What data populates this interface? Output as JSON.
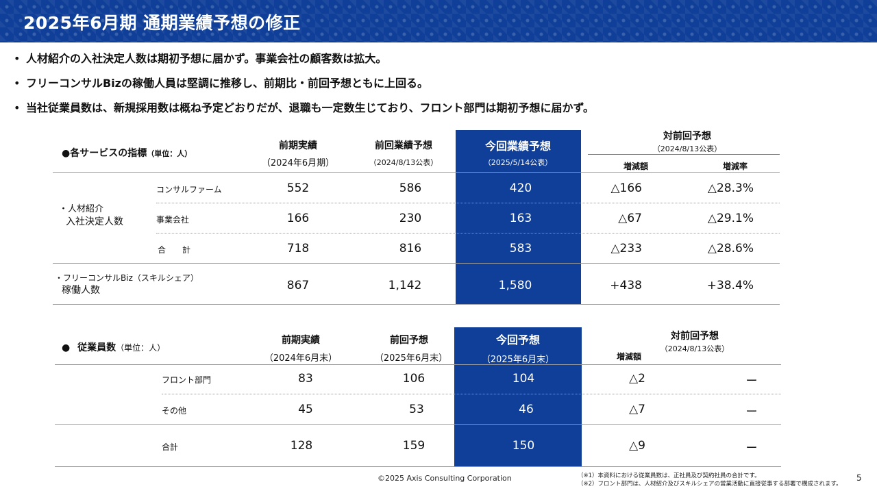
{
  "header": {
    "title": "2025年6月期 通期業績予想の修正"
  },
  "bullets": [
    "人材紹介の入社決定人数は期初予想に届かず。事業会社の顧客数は拡大。",
    "フリーコンサルBizの稼働人員は堅調に推移し、前期比・前回予想ともに上回る。",
    "当社従業員数は、新規採用数は概ね予定どおりだが、退職も一定数生じており、フロント部門は期初予想に届かず。"
  ],
  "table1": {
    "title": "●各サービスの指標",
    "unit": "（単位：人）",
    "col_prev_actual": "前期実績",
    "col_prev_actual_sub": "（2024年6月期）",
    "col_prev_forecast": "前回業績予想",
    "col_prev_forecast_sub": "（2024/8/13公表）",
    "col_current": "今回業績予想",
    "col_current_sub": "（2025/5/14公表）",
    "col_vs": "対前回予想",
    "col_vs_sub": "（2024/8/13公表）",
    "col_diff": "増減額",
    "col_rate": "増減率",
    "group1_line1": "・人材紹介",
    "group1_line2": "入社決定人数",
    "rows": [
      {
        "label": "コンサルファーム",
        "prev": "552",
        "fcst": "586",
        "cur": "420",
        "diff": "△166",
        "rate": "△28.3%"
      },
      {
        "label": "事業会社",
        "prev": "166",
        "fcst": "230",
        "cur": "163",
        "diff": "△67",
        "rate": "△29.1%"
      },
      {
        "label": "合　　計",
        "prev": "718",
        "fcst": "816",
        "cur": "583",
        "diff": "△233",
        "rate": "△28.6%"
      }
    ],
    "biz": {
      "label1": "・フリーコンサルBiz（スキルシェア）",
      "label2": "稼働人数",
      "prev": "867",
      "fcst": "1,142",
      "cur": "1,580",
      "diff": "+438",
      "rate": "+38.4%"
    }
  },
  "table2": {
    "title": "●",
    "title2": "従業員数",
    "unit": "（単位：人）",
    "col_prev_actual": "前期実績",
    "col_prev_actual_sub": "（2024年6月末）",
    "col_prev_forecast": "前回予想",
    "col_prev_forecast_sub": "（2025年6月末）",
    "col_current": "今回予想",
    "col_current_sub": "（2025年6月末）",
    "col_vs": "対前回予想",
    "col_vs_sub": "（2024/8/13公表）",
    "col_diff": "増減額",
    "rows": [
      {
        "label": "フロント部門",
        "prev": "83",
        "fcst": "106",
        "cur": "104",
        "diff": "△2",
        "rate": "ー"
      },
      {
        "label": "その他",
        "prev": "45",
        "fcst": "53",
        "cur": "46",
        "diff": "△7",
        "rate": "ー"
      },
      {
        "label": "合計",
        "prev": "128",
        "fcst": "159",
        "cur": "150",
        "diff": "△9",
        "rate": "ー"
      }
    ]
  },
  "footer": {
    "copyright": "©2025 Axis Consulting Corporation",
    "note1": "（※1）本資料における従業員数は、正社員及び契約社員の合計です。",
    "note2": "（※2）フロント部門は、人材紹介及びスキルシェアの営業活動に直接従事する部署で構成されます。",
    "page": "5"
  }
}
